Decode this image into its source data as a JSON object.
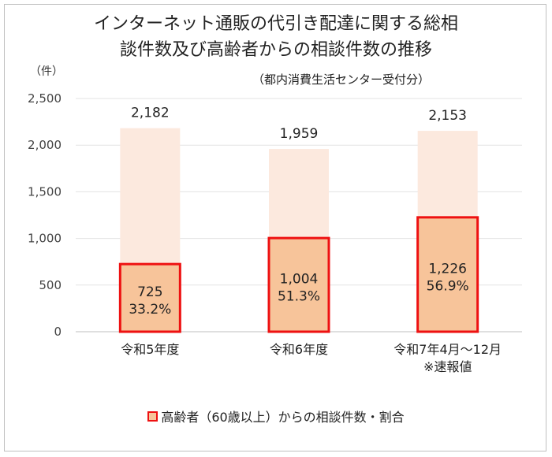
{
  "chart_data": {
    "type": "bar",
    "title_line1": "インターネット通販の代引き配達に関する総相",
    "title_line2": "談件数及び高齢者からの相談件数の推移",
    "subtitle": "（都内消費生活センター受付分）",
    "yunit": "（件）",
    "categories": [
      [
        "令和5年度"
      ],
      [
        "令和6年度"
      ],
      [
        "令和7年4月～12月",
        "※速報値"
      ]
    ],
    "ylim": [
      0,
      2500
    ],
    "yticks": [
      0,
      500,
      1000,
      1500,
      2000,
      2500
    ],
    "series": [
      {
        "values": [
          2182,
          1959,
          2153
        ],
        "labels": [
          "2,182",
          "1,959",
          "2,153"
        ],
        "color": "#fce9de"
      },
      {
        "name": "高齢者（60歳以上）からの相談件数・割合",
        "values": [
          725,
          1004,
          1226
        ],
        "labels": [
          "725",
          "1,004",
          "1,226"
        ],
        "shares": [
          "33.2%",
          "51.3%",
          "56.9%"
        ],
        "color": "#f7c49a",
        "border": "#ee1111"
      }
    ],
    "legend": "bottom",
    "grid": true
  }
}
